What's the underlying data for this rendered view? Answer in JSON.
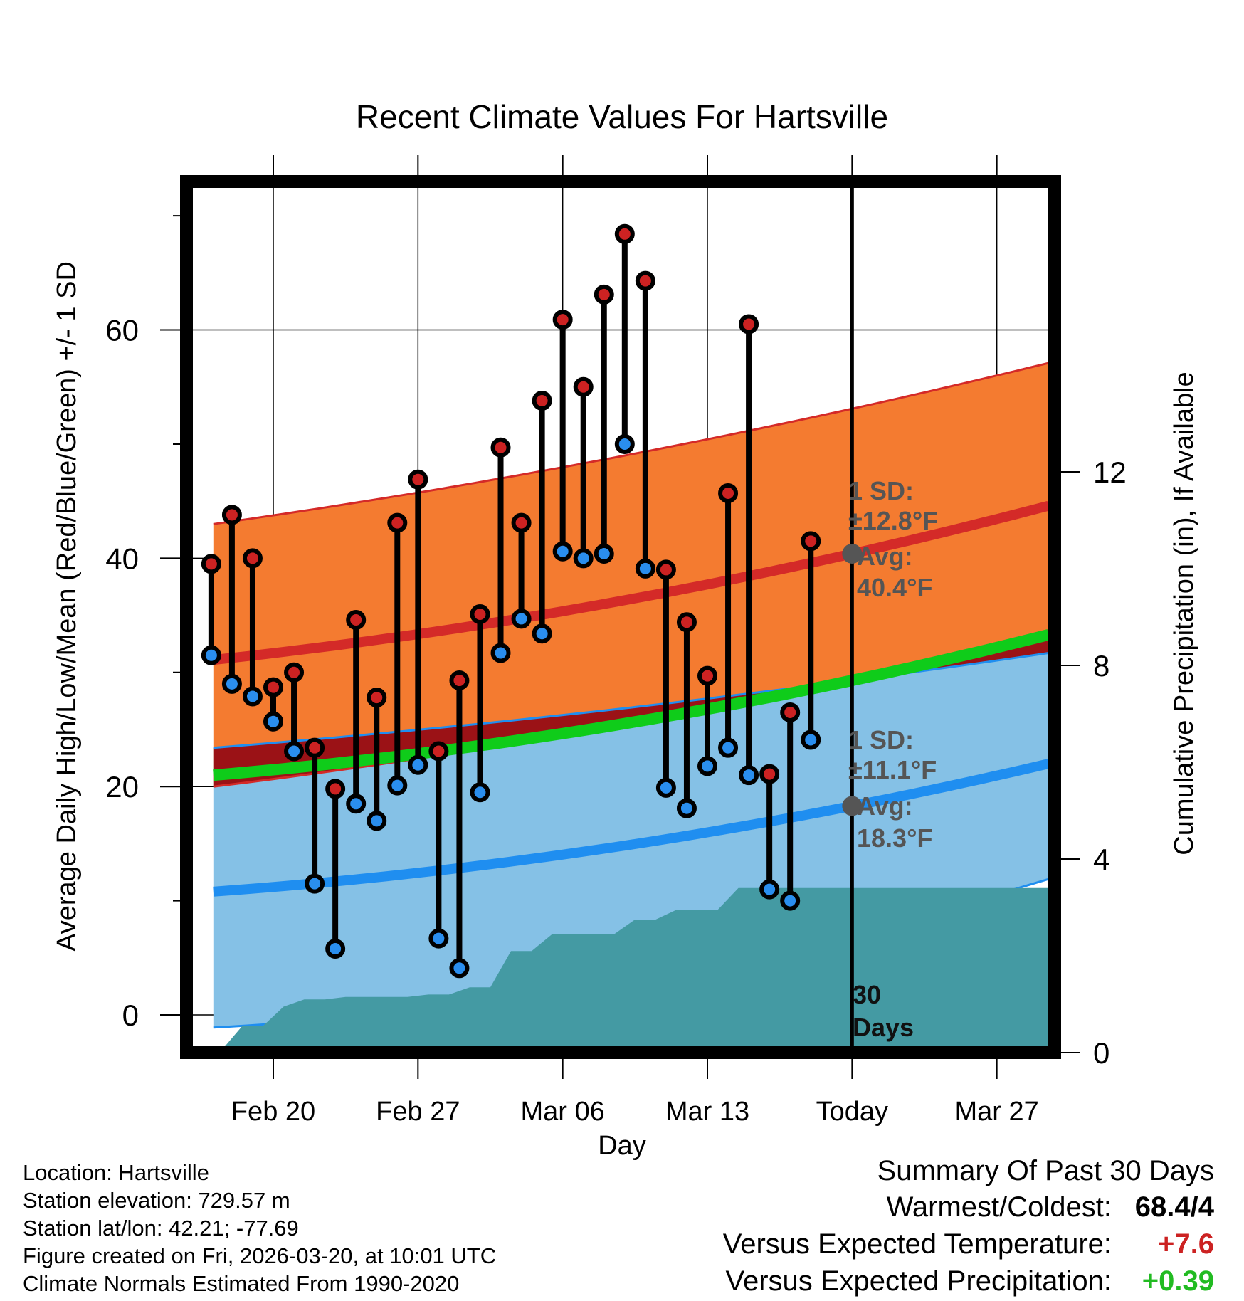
{
  "chart_data": {
    "type": "line",
    "title": "Recent Climate Values For Hartsville",
    "xlabel": "Day",
    "ylabel": "Average Daily High/Low/Mean (Red/Blue/Green) +/- 1 SD",
    "ylabel_right": "Cumulative Precipitation (in), If Available",
    "ylim": [
      -3.3,
      73
    ],
    "ylim_right": [
      0,
      18
    ],
    "xlim_days": [
      -32.2,
      9.8
    ],
    "x_ticks": [
      {
        "day": -28,
        "label": "Feb 20"
      },
      {
        "day": -21,
        "label": "Feb 27"
      },
      {
        "day": -14,
        "label": "Mar 06"
      },
      {
        "day": -7,
        "label": "Mar 13"
      },
      {
        "day": 0,
        "label": "Today"
      },
      {
        "day": 7,
        "label": "Mar 27"
      }
    ],
    "y_ticks": [
      0,
      20,
      40,
      60
    ],
    "y_minor_ticks": [
      10,
      30,
      50,
      70
    ],
    "y_ticks_right": [
      0,
      4,
      8,
      12
    ],
    "y_grid": [
      0,
      20,
      40,
      60
    ],
    "colors": {
      "high_band": "#f47b30",
      "high_line": "#d42a28",
      "low_band": "#85c1e6",
      "low_line": "#1f8ef0",
      "mean_line": "#0fcc1a",
      "overlap": "#9b1216",
      "precip": "#449aa3",
      "dot_high": "#cc2222",
      "dot_low": "#2a8eee",
      "avg_marker": "#555555",
      "annot": "#555555",
      "warm": "#cc2222",
      "wet": "#22bb22"
    },
    "normals": {
      "high_mean": [
        {
          "x": -30.9,
          "y": 31.1
        },
        {
          "x": 0,
          "y": 40.4
        },
        {
          "x": 9.5,
          "y": 44.6
        }
      ],
      "high_upper": [
        {
          "x": -30.9,
          "y": 43.0
        },
        {
          "x": 0,
          "y": 53.1
        },
        {
          "x": 9.5,
          "y": 57.1
        }
      ],
      "high_lower": [
        {
          "x": -30.9,
          "y": 20.0
        },
        {
          "x": 0,
          "y": 29.6
        },
        {
          "x": 9.5,
          "y": 33.7
        }
      ],
      "low_mean": [
        {
          "x": -30.9,
          "y": 10.8
        },
        {
          "x": 0,
          "y": 18.3
        },
        {
          "x": 9.5,
          "y": 22.0
        }
      ],
      "low_upper": [
        {
          "x": -30.9,
          "y": 23.4
        },
        {
          "x": 0,
          "y": 29.3
        },
        {
          "x": 9.5,
          "y": 31.7
        }
      ],
      "low_lower": [
        {
          "x": -30.9,
          "y": -1.1
        },
        {
          "x": 0,
          "y": 7.2
        },
        {
          "x": 9.5,
          "y": 11.9
        }
      ],
      "mean_mean": [
        {
          "x": -30.9,
          "y": 21.0
        },
        {
          "x": 0,
          "y": 29.3
        },
        {
          "x": 9.5,
          "y": 33.3
        }
      ]
    },
    "daily": [
      {
        "day": -31,
        "high": 39.5,
        "low": 31.5
      },
      {
        "day": -30,
        "high": 43.8,
        "low": 29.0
      },
      {
        "day": -29,
        "high": 40.0,
        "low": 27.9
      },
      {
        "day": -28,
        "high": 28.7,
        "low": 25.7
      },
      {
        "day": -27,
        "high": 30.0,
        "low": 23.1
      },
      {
        "day": -26,
        "high": 23.4,
        "low": 11.5
      },
      {
        "day": -25,
        "high": 19.8,
        "low": 5.8
      },
      {
        "day": -24,
        "high": 34.6,
        "low": 18.5
      },
      {
        "day": -23,
        "high": 27.8,
        "low": 17.0
      },
      {
        "day": -22,
        "high": 43.1,
        "low": 20.1
      },
      {
        "day": -21,
        "high": 46.9,
        "low": 21.9
      },
      {
        "day": -20,
        "high": 23.1,
        "low": 6.7
      },
      {
        "day": -19,
        "high": 29.3,
        "low": 4.1
      },
      {
        "day": -18,
        "high": 35.1,
        "low": 19.5
      },
      {
        "day": -17,
        "high": 49.7,
        "low": 31.7
      },
      {
        "day": -16,
        "high": 43.1,
        "low": 34.7
      },
      {
        "day": -15,
        "high": 53.8,
        "low": 33.4
      },
      {
        "day": -14,
        "high": 60.9,
        "low": 40.6
      },
      {
        "day": -13,
        "high": 55.0,
        "low": 40.0
      },
      {
        "day": -12,
        "high": 63.1,
        "low": 40.4
      },
      {
        "day": -11,
        "high": 68.4,
        "low": 50.0
      },
      {
        "day": -10,
        "high": 64.3,
        "low": 39.1
      },
      {
        "day": -9,
        "high": 39.0,
        "low": 19.9
      },
      {
        "day": -8,
        "high": 34.4,
        "low": 18.1
      },
      {
        "day": -7,
        "high": 29.7,
        "low": 21.8
      },
      {
        "day": -6,
        "high": 45.7,
        "low": 23.4
      },
      {
        "day": -5,
        "high": 60.5,
        "low": 21.0
      },
      {
        "day": -4,
        "high": 21.1,
        "low": 11.0
      },
      {
        "day": -3,
        "high": 26.5,
        "low": 10.0
      },
      {
        "day": -2,
        "high": 41.5,
        "low": 24.1
      }
    ],
    "precip_cumulative": [
      {
        "x": -32.2,
        "y": 0.0
      },
      {
        "x": -30.5,
        "y": 0.05
      },
      {
        "x": -29.5,
        "y": 0.55
      },
      {
        "x": -28.5,
        "y": 0.55
      },
      {
        "x": -27.5,
        "y": 0.95
      },
      {
        "x": -26.5,
        "y": 1.1
      },
      {
        "x": -25.5,
        "y": 1.1
      },
      {
        "x": -24.5,
        "y": 1.15
      },
      {
        "x": -21.5,
        "y": 1.15
      },
      {
        "x": -20.5,
        "y": 1.2
      },
      {
        "x": -19.5,
        "y": 1.2
      },
      {
        "x": -18.5,
        "y": 1.35
      },
      {
        "x": -17.5,
        "y": 1.35
      },
      {
        "x": -16.5,
        "y": 2.1
      },
      {
        "x": -15.5,
        "y": 2.1
      },
      {
        "x": -14.5,
        "y": 2.45
      },
      {
        "x": -13.5,
        "y": 2.45
      },
      {
        "x": -11.5,
        "y": 2.45
      },
      {
        "x": -10.5,
        "y": 2.75
      },
      {
        "x": -9.5,
        "y": 2.75
      },
      {
        "x": -8.5,
        "y": 2.95
      },
      {
        "x": -6.5,
        "y": 2.95
      },
      {
        "x": -5.5,
        "y": 3.4
      },
      {
        "x": 9.8,
        "y": 3.4
      }
    ],
    "annotations": {
      "high_sd_label": "1 SD:",
      "high_sd_value": "±12.8°F",
      "high_avg_label": "Avg:",
      "high_avg_value": "40.4°F",
      "high_avg_y": 40.4,
      "low_sd_label": "1 SD:",
      "low_sd_value": "±11.1°F",
      "low_avg_label": "Avg:",
      "low_avg_value": "18.3°F",
      "low_avg_y": 18.3,
      "period_value": "30",
      "period_unit": "Days"
    }
  },
  "info": {
    "location": "Location: Hartsville",
    "elevation": "Station elevation: 729.57 m",
    "latlon": "Station lat/lon: 42.21; -77.69",
    "created": "Figure created on Fri, 2026-03-20, at 10:01 UTC",
    "normals": "Climate Normals Estimated From 1990-2020"
  },
  "summary": {
    "heading": "Summary Of Past 30 Days",
    "warmest_label": "Warmest/Coldest:",
    "warmest_value": "68.4/4",
    "temp_label": "Versus Expected Temperature:",
    "temp_value": "+7.6",
    "precip_label": "Versus Expected Precipitation:",
    "precip_value": "+0.39"
  }
}
